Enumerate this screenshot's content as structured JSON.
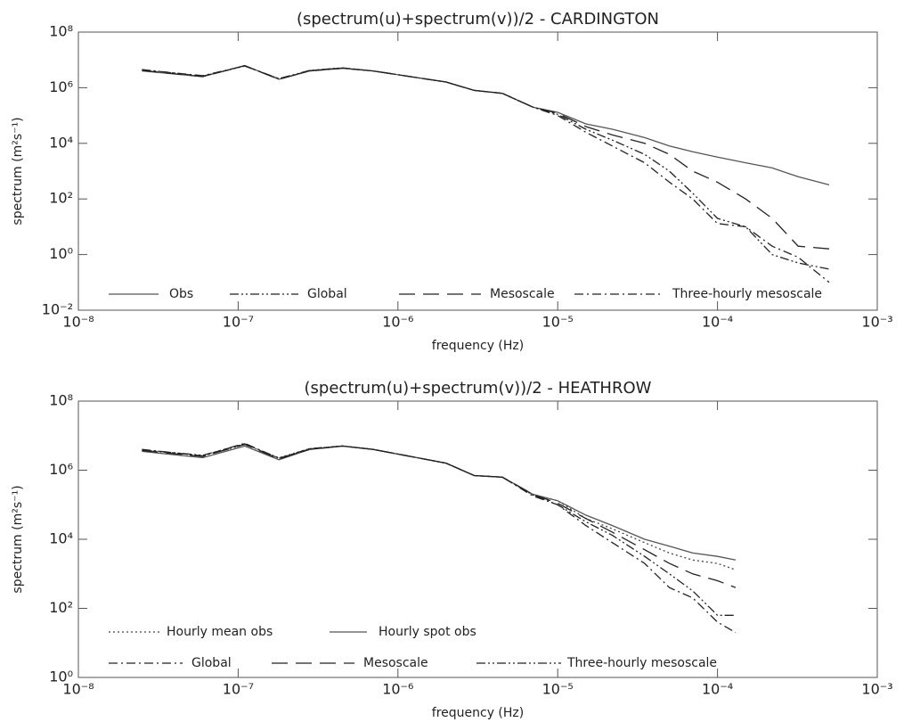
{
  "chart_data": [
    {
      "type": "line",
      "title": "(spectrum(u)+spectrum(v))/2 - CARDINGTON",
      "xlabel": "frequency (Hz)",
      "ylabel": "spectrum (m²s⁻¹)",
      "xscale": "log",
      "yscale": "log",
      "legend": "lower left",
      "xlim": [
        1e-08,
        0.001
      ],
      "ylim": [
        0.01,
        100000000
      ],
      "xticks": [
        {
          "value": 1e-08,
          "label": "10⁻⁸"
        },
        {
          "value": 1e-07,
          "label": "10⁻⁷"
        },
        {
          "value": 1e-06,
          "label": "10⁻⁶"
        },
        {
          "value": 1e-05,
          "label": "10⁻⁵"
        },
        {
          "value": 0.0001,
          "label": "10⁻⁴"
        },
        {
          "value": 0.001,
          "label": "10⁻³"
        }
      ],
      "yticks": [
        {
          "value": 0.01,
          "label": "10⁻²"
        },
        {
          "value": 1,
          "label": "10⁰"
        },
        {
          "value": 100,
          "label": "10²"
        },
        {
          "value": 10000,
          "label": "10⁴"
        },
        {
          "value": 1000000,
          "label": "10⁶"
        },
        {
          "value": 100000000,
          "label": "10⁸"
        }
      ],
      "x": [
        2.5e-08,
        6e-08,
        1.1e-07,
        1.8e-07,
        2.8e-07,
        4.5e-07,
        7e-07,
        1.2e-06,
        2e-06,
        3e-06,
        4.5e-06,
        7e-06,
        1e-05,
        1.5e-05,
        2.2e-05,
        3.5e-05,
        5e-05,
        7e-05,
        0.0001,
        0.00015,
        0.00022,
        0.00032,
        0.0005
      ],
      "series": [
        {
          "name": "Obs",
          "color": "#555555",
          "linestyle": "solid",
          "values": [
            4000000,
            2500000,
            6300000,
            2000000,
            4000000,
            5000000,
            4000000,
            2500000,
            1600000,
            800000,
            630000,
            200000,
            130000,
            50000,
            32000,
            16000,
            8000,
            5000,
            3200,
            2000,
            1300,
            630,
            320
          ]
        },
        {
          "name": "Global",
          "color": "#222222",
          "linestyle": "dashdotdot",
          "values": [
            4500000,
            2600000,
            6000000,
            2100000,
            4200000,
            5200000,
            4000000,
            2500000,
            1600000,
            800000,
            630000,
            200000,
            110000,
            32000,
            13000,
            4000,
            1000,
            160,
            20,
            10,
            1,
            0.5,
            0.3
          ]
        },
        {
          "name": "Mesoscale",
          "color": "#222222",
          "linestyle": "longdash",
          "values": [
            4200000,
            2500000,
            6200000,
            2000000,
            4100000,
            5100000,
            4000000,
            2500000,
            1600000,
            800000,
            630000,
            200000,
            120000,
            40000,
            20000,
            10000,
            4000,
            1000,
            400,
            100,
            20,
            2,
            1.6
          ]
        },
        {
          "name": "Three-hourly mesoscale",
          "color": "#222222",
          "linestyle": "dashdot",
          "values": [
            4400000,
            2700000,
            6100000,
            2100000,
            4000000,
            5000000,
            4000000,
            2500000,
            1600000,
            800000,
            630000,
            200000,
            100000,
            25000,
            8000,
            2000,
            400,
            100,
            13,
            10,
            2,
            0.8,
            0.1
          ]
        }
      ]
    },
    {
      "type": "line",
      "title": "(spectrum(u)+spectrum(v))/2 - HEATHROW",
      "xlabel": "frequency (Hz)",
      "ylabel": "spectrum (m²s⁻¹)",
      "xscale": "log",
      "yscale": "log",
      "legend": "lower left",
      "xlim": [
        1e-08,
        0.001
      ],
      "ylim": [
        1,
        100000000
      ],
      "xticks": [
        {
          "value": 1e-08,
          "label": "10⁻⁸"
        },
        {
          "value": 1e-07,
          "label": "10⁻⁷"
        },
        {
          "value": 1e-06,
          "label": "10⁻⁶"
        },
        {
          "value": 1e-05,
          "label": "10⁻⁵"
        },
        {
          "value": 0.0001,
          "label": "10⁻⁴"
        },
        {
          "value": 0.001,
          "label": "10⁻³"
        }
      ],
      "yticks": [
        {
          "value": 1,
          "label": "10⁰"
        },
        {
          "value": 100,
          "label": "10²"
        },
        {
          "value": 10000,
          "label": "10⁴"
        },
        {
          "value": 1000000,
          "label": "10⁶"
        },
        {
          "value": 100000000,
          "label": "10⁸"
        }
      ],
      "x": [
        2.5e-08,
        6e-08,
        1.1e-07,
        1.8e-07,
        2.8e-07,
        4.5e-07,
        7e-07,
        1.2e-06,
        2e-06,
        3e-06,
        4.5e-06,
        7e-06,
        1e-05,
        1.5e-05,
        2.2e-05,
        3.5e-05,
        5e-05,
        7e-05,
        0.0001,
        0.00013
      ],
      "series": [
        {
          "name": "Hourly mean obs",
          "color": "#444444",
          "linestyle": "dotted",
          "values": [
            3800000,
            2600000,
            5500000,
            2300000,
            4200000,
            5000000,
            4000000,
            2500000,
            1600000,
            700000,
            630000,
            200000,
            130000,
            40000,
            20000,
            8000,
            4000,
            2500,
            2000,
            1300
          ]
        },
        {
          "name": "Hourly spot obs",
          "color": "#555555",
          "linestyle": "solid",
          "values": [
            3500000,
            2300000,
            5000000,
            2000000,
            4000000,
            5000000,
            4000000,
            2500000,
            1600000,
            700000,
            630000,
            200000,
            130000,
            50000,
            25000,
            10000,
            6300,
            4000,
            3200,
            2500
          ]
        },
        {
          "name": "Global",
          "color": "#222222",
          "linestyle": "dashdot",
          "values": [
            4000000,
            2600000,
            6000000,
            2200000,
            4200000,
            5000000,
            4000000,
            2500000,
            1600000,
            700000,
            630000,
            180000,
            100000,
            25000,
            8000,
            2000,
            400,
            200,
            40,
            20
          ]
        },
        {
          "name": "Mesoscale",
          "color": "#222222",
          "linestyle": "longdash",
          "values": [
            3700000,
            2500000,
            5600000,
            2100000,
            4100000,
            5000000,
            4000000,
            2500000,
            1600000,
            700000,
            630000,
            200000,
            110000,
            40000,
            16000,
            5000,
            2000,
            1000,
            630,
            400
          ]
        },
        {
          "name": "Three-hourly mesoscale",
          "color": "#222222",
          "linestyle": "dashdotdot",
          "values": [
            3900000,
            2700000,
            5800000,
            2200000,
            4000000,
            5000000,
            4000000,
            2500000,
            1600000,
            700000,
            630000,
            190000,
            100000,
            32000,
            13000,
            3200,
            1000,
            320,
            63,
            63
          ]
        }
      ]
    }
  ]
}
